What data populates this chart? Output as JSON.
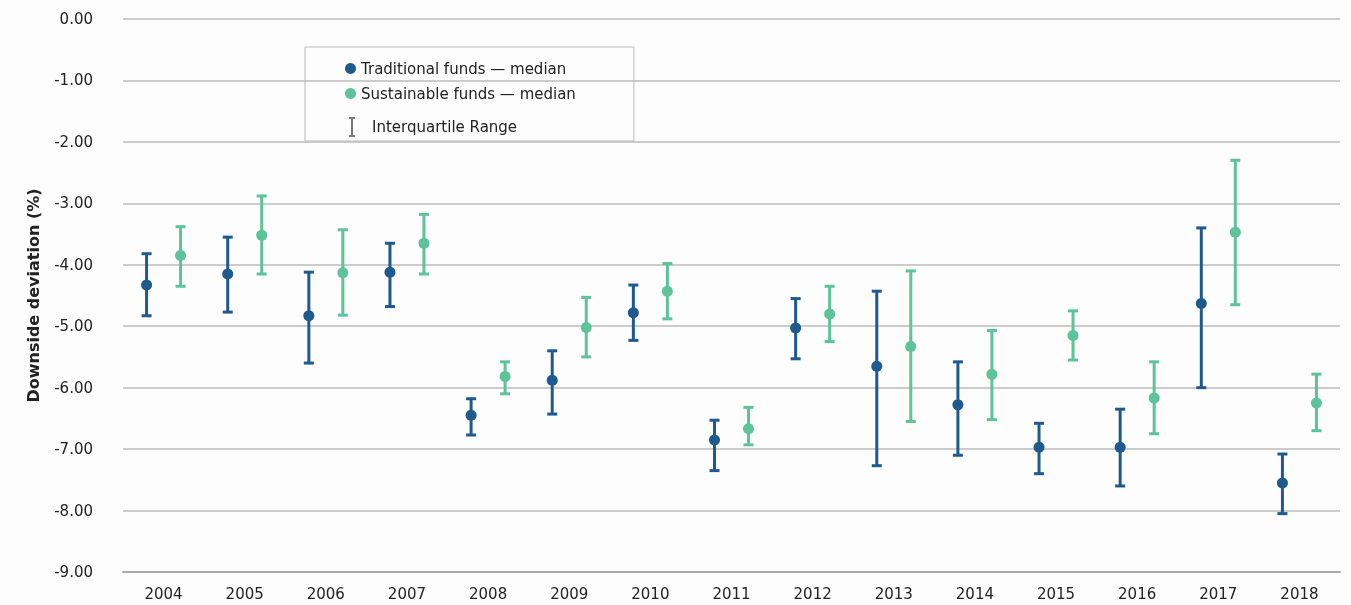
{
  "chart_data": {
    "type": "scatter",
    "ylabel": "Downside deviation (%)",
    "categories": [
      "2004",
      "2005",
      "2006",
      "2007",
      "2008",
      "2009",
      "2010",
      "2011",
      "2012",
      "2013",
      "2014",
      "2015",
      "2016",
      "2017",
      "2018"
    ],
    "series": [
      {
        "name": "Traditional funds — median",
        "color": "#1f5a8f",
        "values": [
          -4.33,
          -4.15,
          -4.83,
          -4.12,
          -6.45,
          -5.88,
          -4.78,
          -6.85,
          -5.03,
          -5.65,
          -6.28,
          -6.97,
          -6.97,
          -4.63,
          -7.55
        ],
        "errors": [
          [
            -4.83,
            -3.82
          ],
          [
            -4.77,
            -3.55
          ],
          [
            -5.6,
            -4.12
          ],
          [
            -4.68,
            -3.65
          ],
          [
            -6.77,
            -6.18
          ],
          [
            -6.43,
            -5.4
          ],
          [
            -5.23,
            -4.33
          ],
          [
            -7.35,
            -6.53
          ],
          [
            -5.53,
            -4.55
          ],
          [
            -7.27,
            -4.43
          ],
          [
            -7.1,
            -5.58
          ],
          [
            -7.4,
            -6.58
          ],
          [
            -7.6,
            -6.35
          ],
          [
            -6.0,
            -3.4
          ],
          [
            -8.05,
            -7.08
          ]
        ]
      },
      {
        "name": "Sustainable funds — median",
        "color": "#5cc39a",
        "values": [
          -3.85,
          -3.52,
          -4.13,
          -3.65,
          -5.82,
          -5.02,
          -4.43,
          -6.67,
          -4.8,
          -5.33,
          -5.78,
          -5.15,
          -6.17,
          -3.47,
          -6.25
        ],
        "errors": [
          [
            -4.35,
            -3.38
          ],
          [
            -4.15,
            -2.88
          ],
          [
            -4.82,
            -3.43
          ],
          [
            -4.15,
            -3.18
          ],
          [
            -6.1,
            -5.58
          ],
          [
            -5.5,
            -4.53
          ],
          [
            -4.88,
            -3.98
          ],
          [
            -6.93,
            -6.32
          ],
          [
            -5.25,
            -4.35
          ],
          [
            -6.55,
            -4.1
          ],
          [
            -6.52,
            -5.07
          ],
          [
            -5.55,
            -4.75
          ],
          [
            -6.75,
            -5.58
          ],
          [
            -4.65,
            -2.3
          ],
          [
            -6.7,
            -5.78
          ]
        ]
      }
    ],
    "annotations": [
      "Interquartile Range"
    ],
    "ylim": [
      -9,
      0
    ],
    "yticks": [
      {
        "value": 0,
        "label": "0.00"
      },
      {
        "value": -1,
        "label": "-1.00"
      },
      {
        "value": -2,
        "label": "-2.00"
      },
      {
        "value": -3,
        "label": "-3.00"
      },
      {
        "value": -4,
        "label": "-4.00"
      },
      {
        "value": -5,
        "label": "-5.00"
      },
      {
        "value": -6,
        "label": "-6.00"
      },
      {
        "value": -7,
        "label": "-7.00"
      },
      {
        "value": -8,
        "label": "-8.00"
      },
      {
        "value": -9,
        "label": "-9.00"
      }
    ],
    "grid": "y",
    "legend": "top left",
    "marker": "circle"
  }
}
